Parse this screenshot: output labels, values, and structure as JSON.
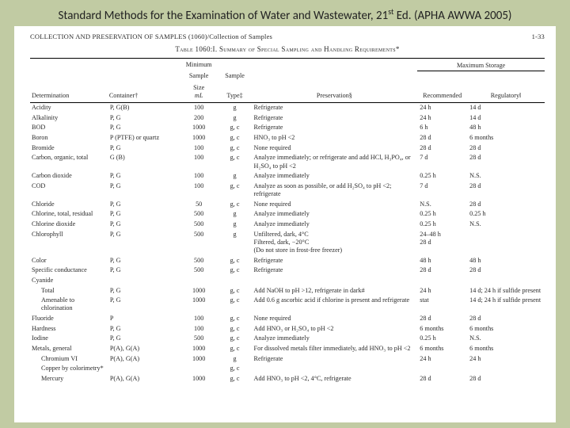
{
  "title_html": "Standard Methods for the Examination of Water and Wastewater, 21<sup>st</sup> Ed. (APHA AWWA 2005)",
  "page_header_left": "COLLECTION AND PRESERVATION OF SAMPLES (1060)/Collection of Samples",
  "page_header_right": "1-33",
  "table_caption": "Table 1060:I.  Summary of Special Sampling and Handling Requirements*",
  "headers": {
    "determination": "Determination",
    "container": "Container†",
    "min_size_l1": "Minimum",
    "min_size_l2": "Sample",
    "min_size_l3": "Size",
    "min_size_unit": "mL",
    "sample_type_l1": "Sample",
    "sample_type_l2": "Type‡",
    "preservation": "Preservation§",
    "max_storage": "Maximum Storage",
    "recommended": "Recommended",
    "regulatory": "Regulatory‖"
  },
  "rows": [
    {
      "d": "Acidity",
      "c": "P, G(B)",
      "s": "100",
      "t": "g",
      "p": "Refrigerate",
      "r": "24 h",
      "g": "14 d"
    },
    {
      "d": "Alkalinity",
      "c": "P, G",
      "s": "200",
      "t": "g",
      "p": "Refrigerate",
      "r": "24 h",
      "g": "14 d"
    },
    {
      "d": "BOD",
      "c": "P, G",
      "s": "1000",
      "t": "g, c",
      "p": "Refrigerate",
      "r": "6 h",
      "g": "48 h"
    },
    {
      "d": "Boron",
      "c": "P (PTFE) or quartz",
      "s": "1000",
      "t": "g, c",
      "p": "HNO₃ to pH <2",
      "r": "28 d",
      "g": "6 months"
    },
    {
      "d": "Bromide",
      "c": "P, G",
      "s": "100",
      "t": "g, c",
      "p": "None required",
      "r": "28 d",
      "g": "28 d"
    },
    {
      "d": "Carbon, organic, total",
      "c": "G (B)",
      "s": "100",
      "t": "g, c",
      "p": "Analyze immediately; or refrigerate and add HCl, H₃PO₄, or H₂SO₄ to pH <2",
      "r": "7 d",
      "g": "28 d"
    },
    {
      "d": "Carbon dioxide",
      "c": "P, G",
      "s": "100",
      "t": "g",
      "p": "Analyze immediately",
      "r": "0.25 h",
      "g": "N.S."
    },
    {
      "d": "COD",
      "c": "P, G",
      "s": "100",
      "t": "g, c",
      "p": "Analyze as soon as possible, or add H₂SO₄ to pH <2; refrigerate",
      "r": "7 d",
      "g": "28 d"
    },
    {
      "d": "Chloride",
      "c": "P, G",
      "s": "50",
      "t": "g, c",
      "p": "None required",
      "r": "N.S.",
      "g": "28 d"
    },
    {
      "d": "Chlorine, total, residual",
      "c": "P, G",
      "s": "500",
      "t": "g",
      "p": "Analyze immediately",
      "r": "0.25 h",
      "g": "0.25 h"
    },
    {
      "d": "Chlorine dioxide",
      "c": "P, G",
      "s": "500",
      "t": "g",
      "p": "Analyze immediately",
      "r": "0.25 h",
      "g": "N.S."
    },
    {
      "d": "Chlorophyll",
      "c": "P, G",
      "s": "500",
      "t": "g",
      "p": "Unfiltered, dark, 4°C<br>Filtered, dark, −20°C<br>(Do not store in frost-free freezer)",
      "r": "24–48 h<br>28 d",
      "g": ""
    },
    {
      "d": "Color",
      "c": "P, G",
      "s": "500",
      "t": "g, c",
      "p": "Refrigerate",
      "r": "48 h",
      "g": "48 h"
    },
    {
      "d": "Specific conductance",
      "c": "P, G",
      "s": "500",
      "t": "g, c",
      "p": "Refrigerate",
      "r": "28 d",
      "g": "28 d"
    },
    {
      "d": "Cyanide",
      "c": "",
      "s": "",
      "t": "",
      "p": "",
      "r": "",
      "g": ""
    },
    {
      "d": "Total",
      "ind": true,
      "c": "P, G",
      "s": "1000",
      "t": "g, c",
      "p": "Add NaOH to pH >12, refrigerate in dark#",
      "r": "24 h",
      "g": "14 d; 24 h if sulfide present"
    },
    {
      "d": "Amenable to chlorination",
      "ind": true,
      "c": "P, G",
      "s": "1000",
      "t": "g, c",
      "p": "Add 0.6 g ascorbic acid if chlorine is present and refrigerate",
      "r": "stat",
      "g": "14 d; 24 h if sulfide present"
    },
    {
      "d": "Fluoride",
      "c": "P",
      "s": "100",
      "t": "g, c",
      "p": "None required",
      "r": "28 d",
      "g": "28 d"
    },
    {
      "d": "Hardness",
      "c": "P, G",
      "s": "100",
      "t": "g, c",
      "p": "Add HNO₃ or H₂SO₄ to pH <2",
      "r": "6 months",
      "g": "6 months"
    },
    {
      "d": "Iodine",
      "c": "P, G",
      "s": "500",
      "t": "g, c",
      "p": "Analyze immediately",
      "r": "0.25 h",
      "g": "N.S."
    },
    {
      "d": "Metals, general",
      "c": "P(A), G(A)",
      "s": "1000",
      "t": "g, c",
      "p": "For dissolved metals filter immediately, add HNO₃ to pH <2",
      "r": "6 months",
      "g": "6 months"
    },
    {
      "d": "Chromium VI",
      "ind": true,
      "c": "P(A), G(A)",
      "s": "1000",
      "t": "g",
      "p": "Refrigerate",
      "r": "24 h",
      "g": "24 h"
    },
    {
      "d": "Copper by colorimetry*",
      "ind": true,
      "c": "",
      "s": "",
      "t": "g, c",
      "p": "",
      "r": "",
      "g": ""
    },
    {
      "d": "Mercury",
      "ind": true,
      "c": "P(A), G(A)",
      "s": "1000",
      "t": "g, c",
      "p": "Add HNO₃ to pH <2, 4°C, refrigerate",
      "r": "28 d",
      "g": "28 d"
    }
  ]
}
